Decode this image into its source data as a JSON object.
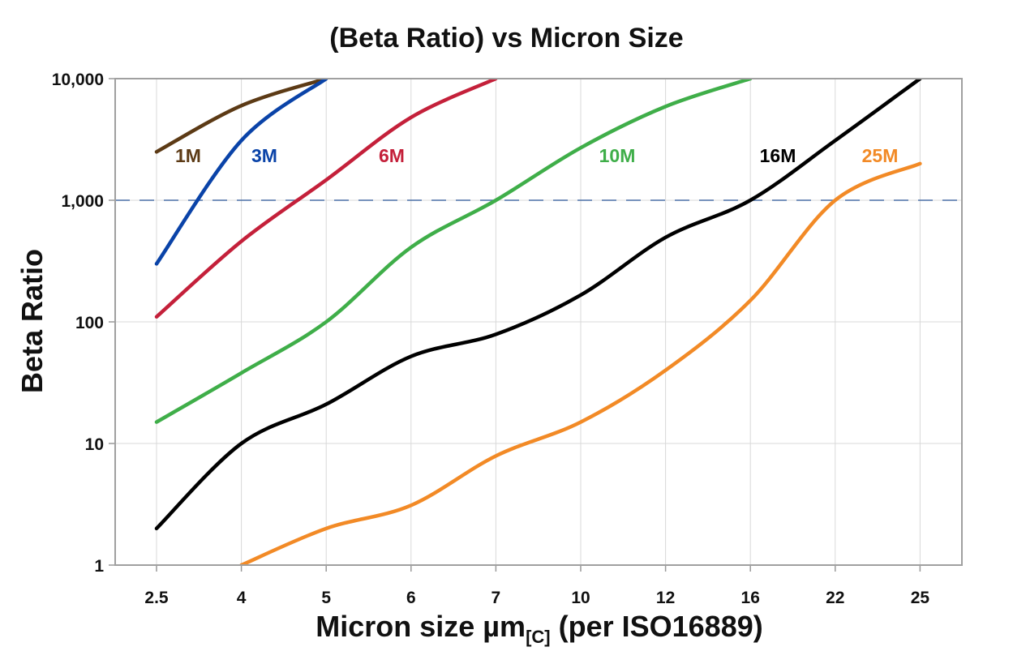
{
  "chart_data": {
    "type": "line",
    "title": "(Beta Ratio) vs Micron Size",
    "xlabel_main": "Micron size µm",
    "xlabel_sub": "[C]",
    "xlabel_tail": " (per ISO16889)",
    "ylabel": "Beta Ratio",
    "y_scale": "log",
    "ylim": [
      1,
      10000
    ],
    "y_ticks": [
      {
        "value": 1,
        "label": "1"
      },
      {
        "value": 10,
        "label": "10"
      },
      {
        "value": 100,
        "label": "100"
      },
      {
        "value": 1000,
        "label": "1,000"
      },
      {
        "value": 10000,
        "label": "10,000"
      }
    ],
    "categories": [
      "2.5",
      "4",
      "5",
      "6",
      "7",
      "10",
      "12",
      "16",
      "22",
      "25"
    ],
    "grid": true,
    "reference_line": {
      "value": 1000,
      "style": "dashed",
      "color": "#4a6fa5"
    },
    "series": [
      {
        "name": "1M",
        "color": "#5c3a15",
        "values": [
          2500,
          6000,
          10000,
          null,
          null,
          null,
          null,
          null,
          null,
          null
        ]
      },
      {
        "name": "3M",
        "color": "#0a43a8",
        "values": [
          300,
          3100,
          10000,
          null,
          null,
          null,
          null,
          null,
          null,
          null
        ]
      },
      {
        "name": "6M",
        "color": "#c4203a",
        "values": [
          110,
          460,
          1470,
          4800,
          10000,
          null,
          null,
          null,
          null,
          null
        ]
      },
      {
        "name": "10M",
        "color": "#3fae49",
        "values": [
          15,
          38,
          100,
          410,
          1000,
          2700,
          5900,
          10000,
          null,
          null
        ]
      },
      {
        "name": "16M",
        "color": "#000000",
        "values": [
          2,
          10,
          21,
          52,
          79,
          166,
          495,
          1000,
          3100,
          10000
        ]
      },
      {
        "name": "25M",
        "color": "#f28a26",
        "values": [
          null,
          1,
          2,
          3.1,
          7.9,
          15,
          40,
          150,
          1000,
          2000
        ]
      }
    ]
  }
}
